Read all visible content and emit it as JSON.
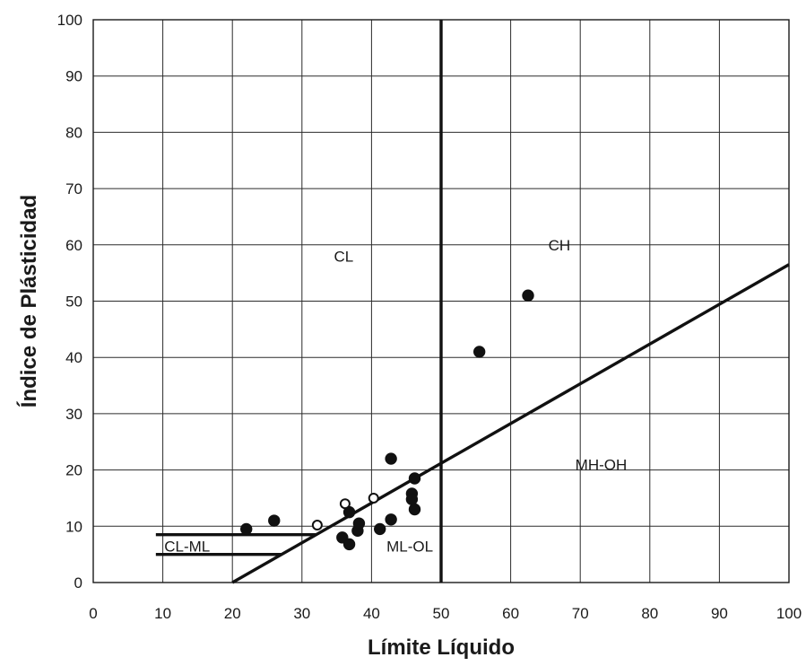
{
  "chart_data": {
    "type": "scatter",
    "title": "",
    "xlabel": "Límite Líquido",
    "ylabel": "Índice de Plásticidad",
    "xlim": [
      0,
      100
    ],
    "ylim": [
      0,
      100
    ],
    "x_ticks": [
      0,
      10,
      20,
      30,
      40,
      50,
      60,
      70,
      80,
      90,
      100
    ],
    "y_ticks": [
      0,
      10,
      20,
      30,
      40,
      50,
      60,
      70,
      80,
      90,
      100
    ],
    "grid": true,
    "legend": "none",
    "series": [
      {
        "marker": "filled-circle",
        "color": "#111111",
        "points": [
          [
            22,
            9.5
          ],
          [
            26,
            11
          ],
          [
            35.8,
            8
          ],
          [
            36.8,
            6.8
          ],
          [
            38,
            9.2
          ],
          [
            38.2,
            10.5
          ],
          [
            36.8,
            12.5
          ],
          [
            41.2,
            9.5
          ],
          [
            42.8,
            11.2
          ],
          [
            42.8,
            22
          ],
          [
            45.8,
            15.8
          ],
          [
            45.8,
            14.8
          ],
          [
            46.2,
            13
          ],
          [
            46.2,
            18.5
          ],
          [
            55.5,
            41
          ],
          [
            62.5,
            51
          ]
        ]
      },
      {
        "marker": "open-circle",
        "color": "#111111",
        "points": [
          [
            32.2,
            10.2
          ],
          [
            36.2,
            14
          ],
          [
            40.3,
            15
          ]
        ]
      }
    ],
    "boundaries": [
      {
        "name": "A-line",
        "x": [
          20,
          100
        ],
        "y": [
          0,
          56.5
        ]
      },
      {
        "name": "LL=50",
        "x": [
          50,
          50
        ],
        "y": [
          0,
          100
        ]
      },
      {
        "name": "PI=7",
        "x": [
          9,
          32
        ],
        "y": [
          8.5,
          8.5
        ]
      },
      {
        "name": "PI=4",
        "x": [
          9,
          27
        ],
        "y": [
          5,
          5
        ]
      }
    ],
    "zones": [
      {
        "text": "CL",
        "x": 36,
        "y": 57
      },
      {
        "text": "CH",
        "x": 67,
        "y": 59
      },
      {
        "text": "MH-OH",
        "x": 73,
        "y": 20
      },
      {
        "text": "ML-OL",
        "x": 45.5,
        "y": 5.5
      },
      {
        "text": "CL-ML",
        "x": 13.5,
        "y": 5.5
      }
    ]
  }
}
